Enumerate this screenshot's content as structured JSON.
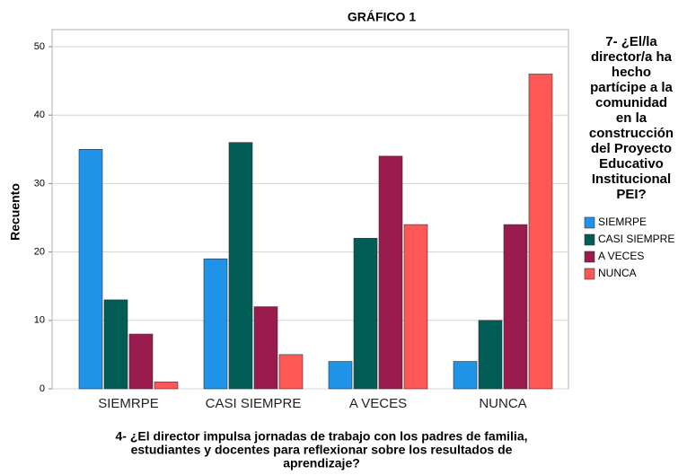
{
  "chart_data": {
    "type": "bar",
    "title": "GRÁFICO 1",
    "y_label": "Recuento",
    "x_label_lines": [
      "4- ¿El director impulsa jornadas de trabajo con los padres de familia,",
      "estudiantes y docentes para reflexionar sobre los resultados de",
      "aprendizaje?"
    ],
    "legend_title_lines": [
      "7- ¿El/la",
      "director/a ha",
      "hecho",
      "partícipe a la",
      "comunidad",
      "en la",
      "construcción",
      "del Proyecto",
      "Educativo",
      "Institucional",
      "PEI?"
    ],
    "categories": [
      "SIEMRPE",
      "CASI SIEMPRE",
      "A  VECES",
      "NUNCA"
    ],
    "series": [
      {
        "name": "SIEMRPE",
        "color": "#1f93e8",
        "values": [
          35,
          19,
          4,
          4
        ]
      },
      {
        "name": "CASI SIEMPRE",
        "color": "#005c55",
        "values": [
          13,
          36,
          22,
          10
        ]
      },
      {
        "name": "A  VECES",
        "color": "#9a1b4e",
        "values": [
          8,
          12,
          34,
          24
        ]
      },
      {
        "name": "NUNCA",
        "color": "#ff5656",
        "values": [
          1,
          5,
          24,
          46
        ]
      }
    ],
    "ylim": [
      0,
      50
    ],
    "yticks": [
      0,
      10,
      20,
      30,
      40,
      50
    ],
    "grid": true,
    "legend": "right"
  }
}
